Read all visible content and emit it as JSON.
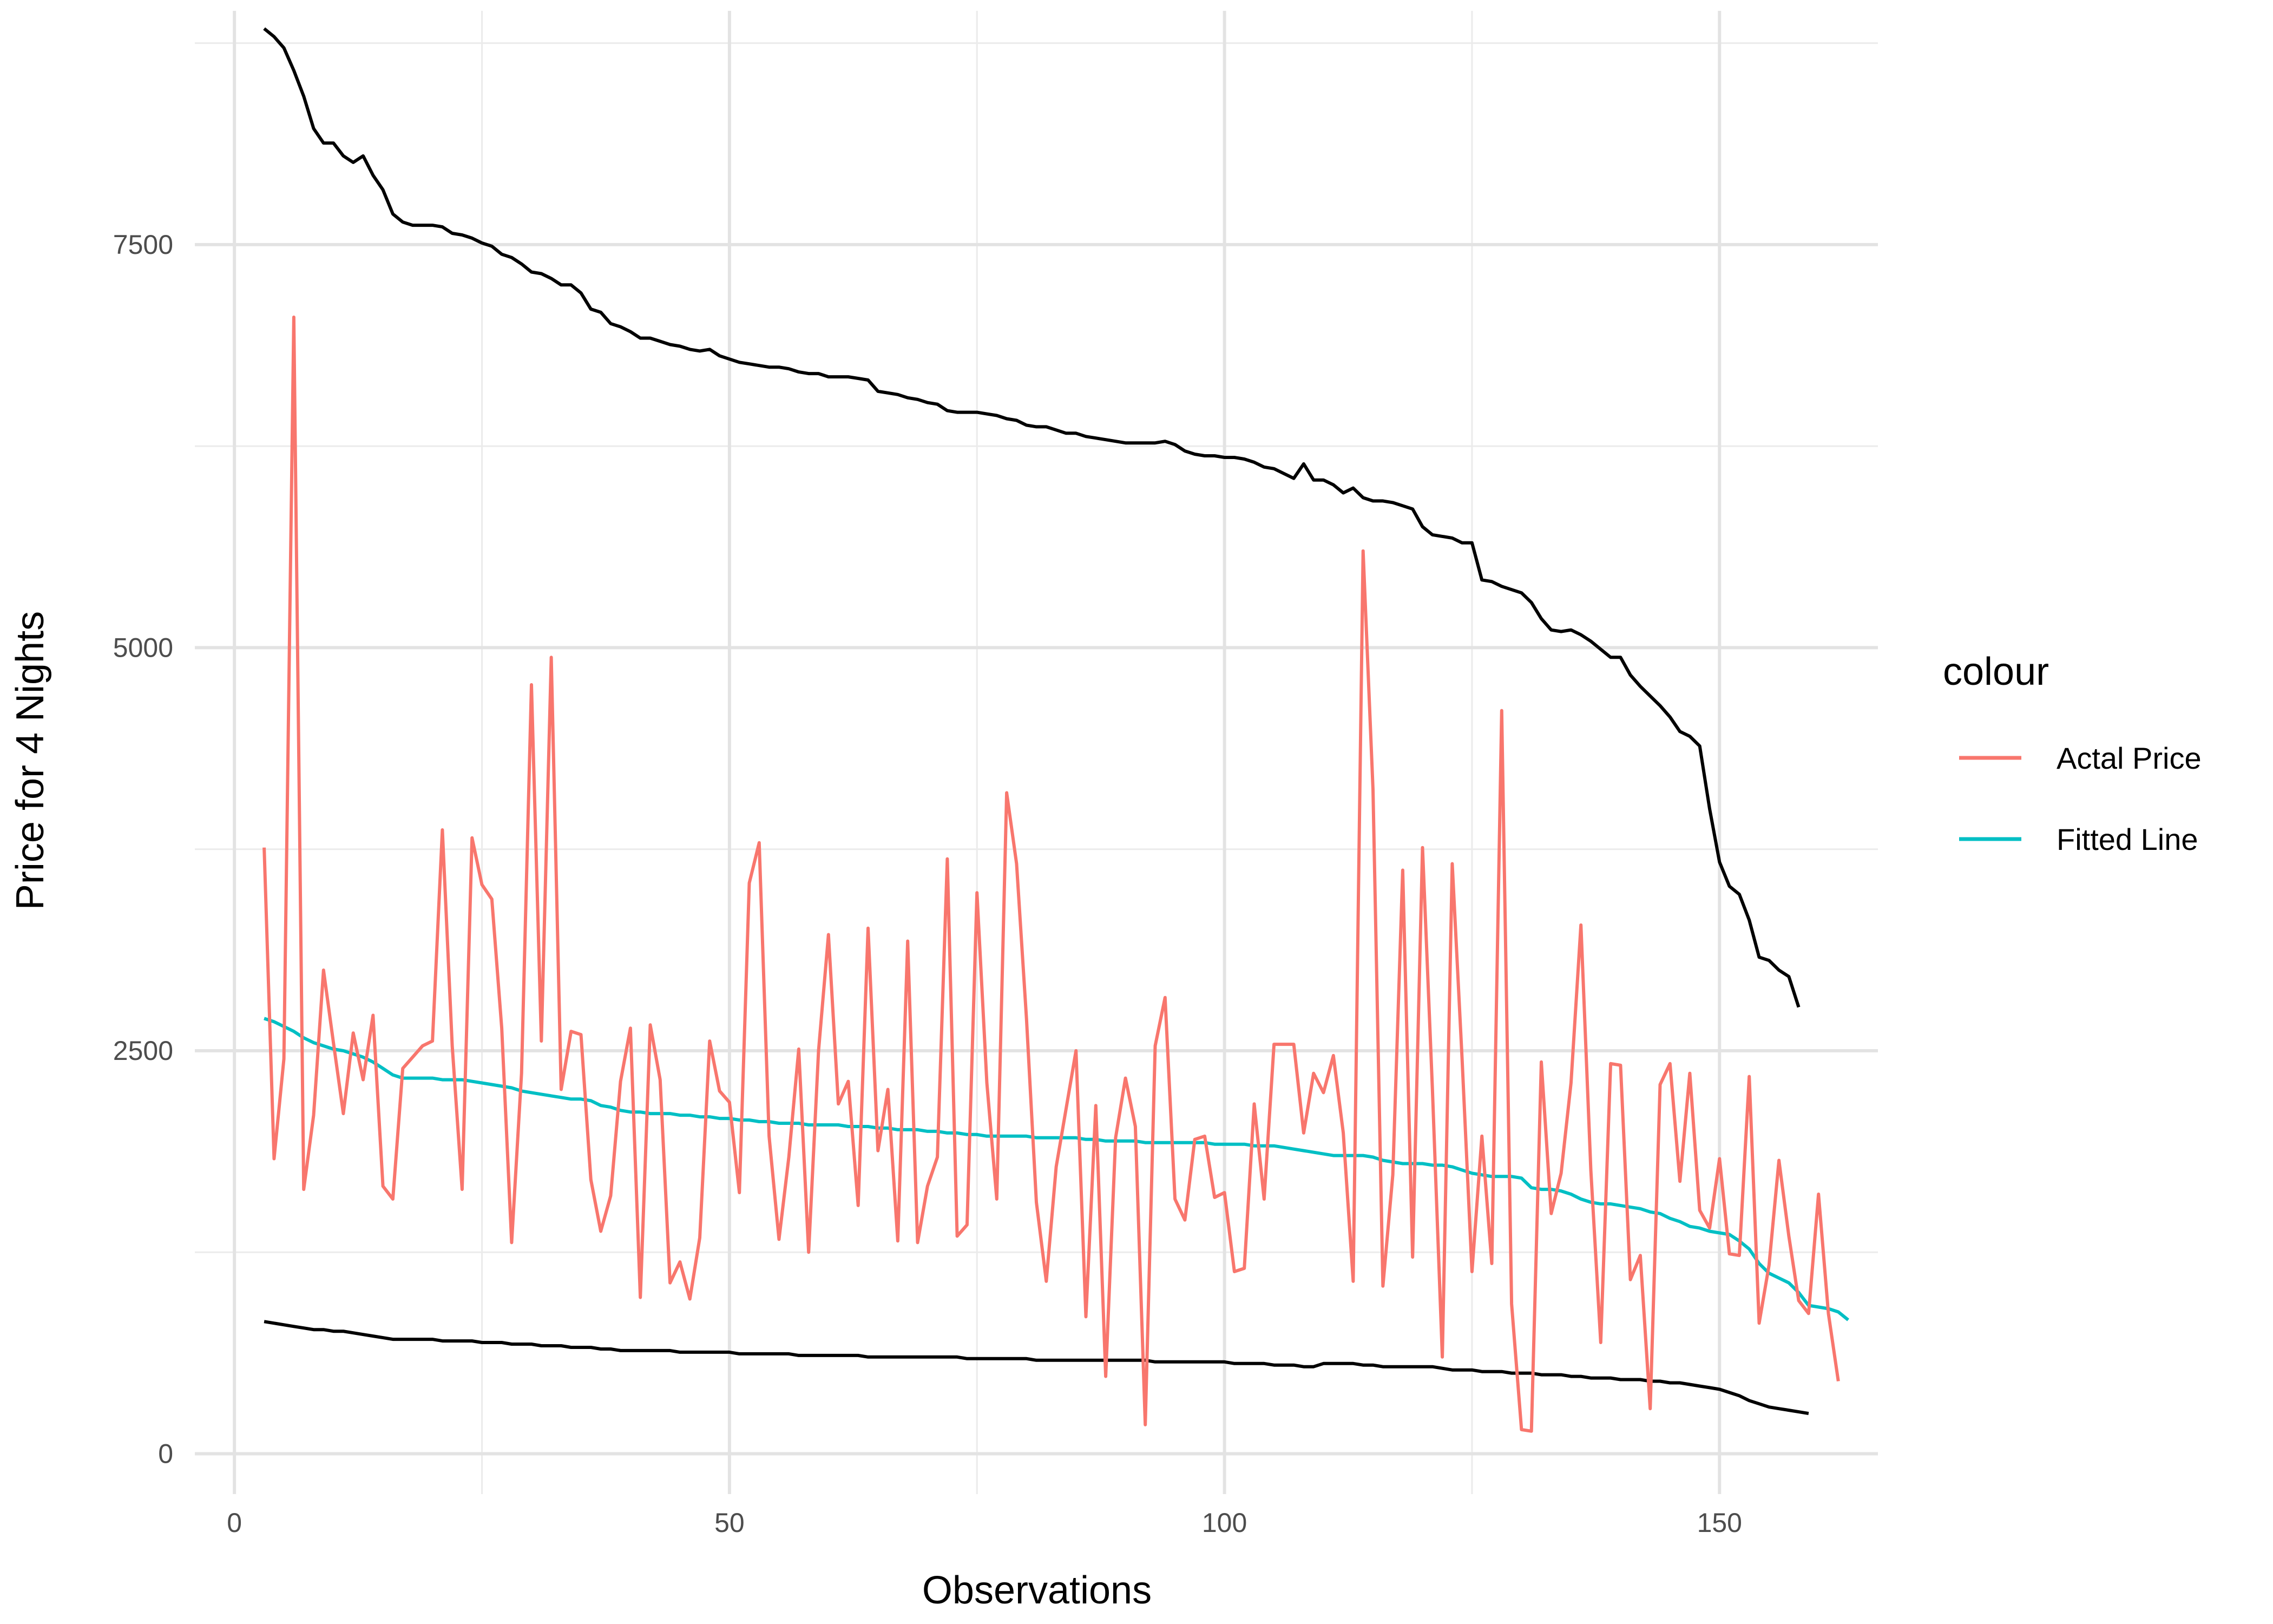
{
  "chart_data": {
    "type": "line",
    "title": "",
    "xlabel": "Observations",
    "ylabel": "Price for 4 Nights",
    "xlim": [
      -4,
      166
    ],
    "ylim": [
      -250,
      8950
    ],
    "x_ticks": [
      0,
      50,
      100,
      150
    ],
    "y_ticks": [
      0,
      2500,
      5000,
      7500
    ],
    "x_tick_labels": [
      "0",
      "50",
      "100",
      "150"
    ],
    "y_tick_labels": [
      "0",
      "2500",
      "5000",
      "7500"
    ],
    "x_minor_ticks": [
      25,
      75,
      125
    ],
    "y_minor_ticks": [
      1250,
      3750,
      6250,
      8750
    ],
    "grid": true,
    "legend": {
      "title": "colour",
      "position": "right",
      "entries": [
        {
          "label": "Actal Price",
          "color": "#F8766D"
        },
        {
          "label": "Fitted Line",
          "color": "#00BFC4"
        }
      ]
    },
    "series": [
      {
        "name": "Actal Price",
        "color": "#F8766D",
        "x_start": 3,
        "values": [
          3760,
          1830,
          2450,
          7050,
          1640,
          2100,
          3000,
          2550,
          2110,
          2610,
          2320,
          2720,
          1660,
          1580,
          2390,
          2460,
          2530,
          2560,
          3870,
          2530,
          1640,
          3820,
          3530,
          3440,
          2640,
          1310,
          2360,
          4770,
          2560,
          4940,
          2260,
          2620,
          2600,
          1700,
          1380,
          1600,
          2310,
          2640,
          970,
          2660,
          2320,
          1060,
          1190,
          960,
          1340,
          2560,
          2250,
          2180,
          1620,
          3540,
          3790,
          1970,
          1330,
          1840,
          2510,
          1250,
          2500,
          3220,
          2170,
          2310,
          1540,
          3260,
          1880,
          2260,
          1320,
          3180,
          1310,
          1660,
          1840,
          3690,
          1350,
          1420,
          3480,
          2300,
          1580,
          4100,
          3660,
          2700,
          1560,
          1070,
          1780,
          2140,
          2500,
          850,
          2160,
          480,
          1960,
          2330,
          2030,
          180,
          2530,
          2830,
          1580,
          1450,
          1950,
          1970,
          1590,
          1620,
          1130,
          1150,
          2170,
          1580,
          2540,
          2540,
          2540,
          1990,
          2360,
          2240,
          2470,
          1990,
          1070,
          5600,
          4120,
          1040,
          1730,
          3620,
          1220,
          3760,
          2260,
          600,
          3660,
          2450,
          1130,
          1970,
          1180,
          4610,
          930,
          150,
          140,
          2430,
          1490,
          1740,
          2300,
          3280,
          1760,
          690,
          2420,
          2410,
          1080,
          1230,
          280,
          2290,
          2420,
          1690,
          2360,
          1510,
          1400,
          1830,
          1240,
          1230,
          2340,
          810,
          1170,
          1820,
          1350,
          950,
          870,
          1610,
          870,
          450
        ]
      },
      {
        "name": "Fitted Line",
        "color": "#00BFC4",
        "x_start": 3,
        "values": [
          2700,
          2680,
          2650,
          2620,
          2580,
          2550,
          2530,
          2510,
          2500,
          2480,
          2460,
          2430,
          2390,
          2350,
          2330,
          2330,
          2330,
          2330,
          2320,
          2320,
          2320,
          2310,
          2300,
          2290,
          2280,
          2270,
          2250,
          2240,
          2230,
          2220,
          2210,
          2200,
          2200,
          2190,
          2160,
          2150,
          2130,
          2120,
          2120,
          2110,
          2110,
          2110,
          2100,
          2100,
          2090,
          2090,
          2080,
          2080,
          2070,
          2070,
          2060,
          2060,
          2050,
          2050,
          2050,
          2040,
          2040,
          2040,
          2040,
          2030,
          2030,
          2030,
          2020,
          2020,
          2010,
          2010,
          2010,
          2000,
          2000,
          1990,
          1990,
          1980,
          1980,
          1970,
          1970,
          1970,
          1970,
          1970,
          1960,
          1960,
          1960,
          1960,
          1960,
          1950,
          1950,
          1940,
          1940,
          1940,
          1940,
          1930,
          1930,
          1930,
          1930,
          1930,
          1930,
          1930,
          1920,
          1920,
          1920,
          1920,
          1910,
          1910,
          1910,
          1900,
          1890,
          1880,
          1870,
          1860,
          1850,
          1850,
          1850,
          1850,
          1840,
          1820,
          1810,
          1800,
          1800,
          1800,
          1790,
          1790,
          1780,
          1760,
          1740,
          1730,
          1720,
          1720,
          1720,
          1710,
          1650,
          1640,
          1640,
          1630,
          1610,
          1580,
          1560,
          1550,
          1550,
          1540,
          1530,
          1520,
          1500,
          1490,
          1460,
          1440,
          1410,
          1400,
          1380,
          1370,
          1360,
          1320,
          1270,
          1180,
          1120,
          1090,
          1060,
          1000,
          920,
          910,
          900,
          880,
          830
        ]
      },
      {
        "name": "",
        "color": "#000000",
        "x_start": 3,
        "values": [
          8840,
          8790,
          8720,
          8580,
          8420,
          8220,
          8130,
          8130,
          8050,
          8010,
          8050,
          7930,
          7840,
          7690,
          7640,
          7620,
          7620,
          7620,
          7610,
          7570,
          7560,
          7540,
          7510,
          7490,
          7440,
          7420,
          7380,
          7330,
          7320,
          7290,
          7250,
          7250,
          7200,
          7100,
          7080,
          7010,
          6990,
          6960,
          6920,
          6920,
          6900,
          6880,
          6870,
          6850,
          6840,
          6850,
          6810,
          6790,
          6770,
          6760,
          6750,
          6740,
          6740,
          6730,
          6710,
          6700,
          6700,
          6680,
          6680,
          6680,
          6670,
          6660,
          6590,
          6580,
          6570,
          6550,
          6540,
          6520,
          6510,
          6470,
          6460,
          6460,
          6460,
          6450,
          6440,
          6420,
          6410,
          6380,
          6370,
          6370,
          6350,
          6330,
          6330,
          6310,
          6300,
          6290,
          6280,
          6270,
          6270,
          6270,
          6270,
          6280,
          6260,
          6220,
          6200,
          6190,
          6190,
          6180,
          6180,
          6170,
          6150,
          6120,
          6110,
          6080,
          6050,
          6140,
          6040,
          6040,
          6010,
          5960,
          5990,
          5930,
          5910,
          5910,
          5900,
          5880,
          5860,
          5750,
          5700,
          5690,
          5680,
          5650,
          5650,
          5420,
          5410,
          5380,
          5360,
          5340,
          5280,
          5180,
          5110,
          5100,
          5110,
          5080,
          5040,
          4990,
          4940,
          4940,
          4830,
          4760,
          4700,
          4640,
          4570,
          4480,
          4450,
          4390,
          4000,
          3670,
          3520,
          3470,
          3310,
          3080,
          3060,
          3000,
          2960,
          2770
        ]
      },
      {
        "name": "",
        "color": "#000000",
        "x_start": 3,
        "values": [
          820,
          810,
          800,
          790,
          780,
          770,
          770,
          760,
          760,
          750,
          740,
          730,
          720,
          710,
          710,
          710,
          710,
          710,
          700,
          700,
          700,
          700,
          690,
          690,
          690,
          680,
          680,
          680,
          670,
          670,
          670,
          660,
          660,
          660,
          650,
          650,
          640,
          640,
          640,
          640,
          640,
          640,
          630,
          630,
          630,
          630,
          630,
          630,
          620,
          620,
          620,
          620,
          620,
          620,
          610,
          610,
          610,
          610,
          610,
          610,
          610,
          600,
          600,
          600,
          600,
          600,
          600,
          600,
          600,
          600,
          600,
          590,
          590,
          590,
          590,
          590,
          590,
          590,
          580,
          580,
          580,
          580,
          580,
          580,
          580,
          580,
          580,
          580,
          580,
          580,
          570,
          570,
          570,
          570,
          570,
          570,
          570,
          570,
          560,
          560,
          560,
          560,
          550,
          550,
          550,
          540,
          540,
          560,
          560,
          560,
          560,
          550,
          550,
          540,
          540,
          540,
          540,
          540,
          540,
          530,
          520,
          520,
          520,
          510,
          510,
          510,
          500,
          500,
          500,
          490,
          490,
          490,
          480,
          480,
          470,
          470,
          470,
          460,
          460,
          460,
          450,
          450,
          440,
          440,
          430,
          420,
          410,
          400,
          380,
          360,
          330,
          310,
          290,
          280,
          270,
          260,
          250
        ]
      }
    ]
  }
}
